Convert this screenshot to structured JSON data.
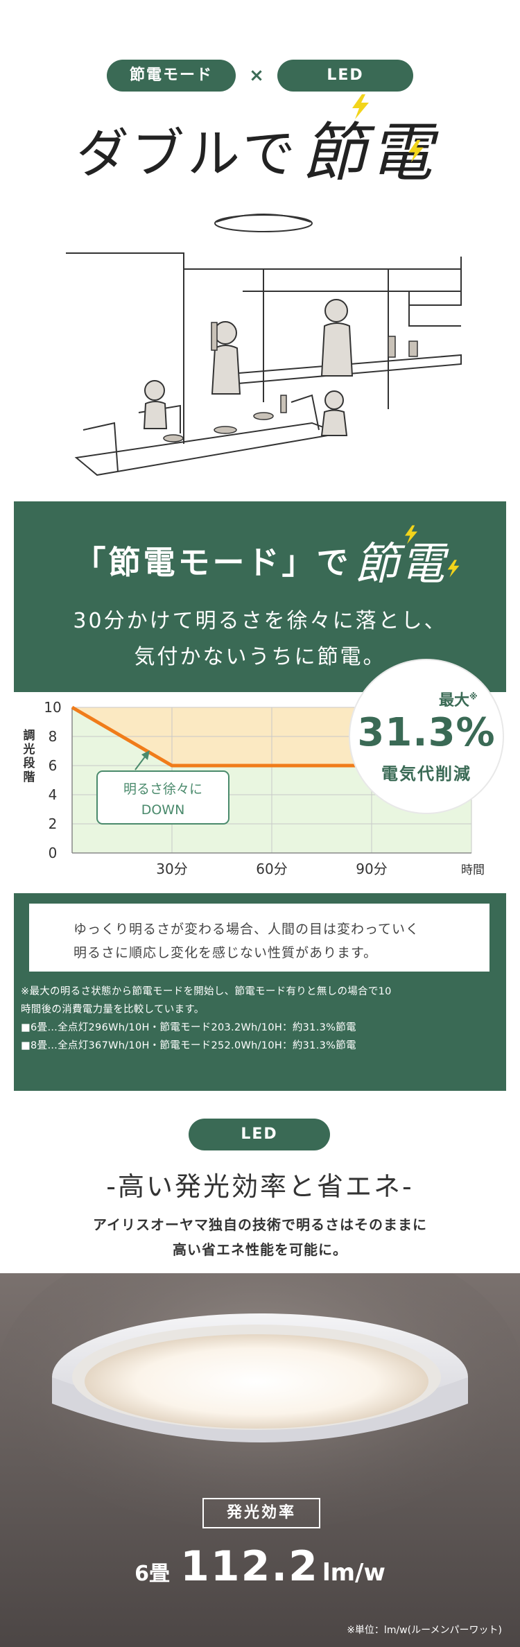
{
  "header": {
    "badge_left": "節電モード",
    "cross": "×",
    "badge_right": "LED",
    "headline_main": "ダブルで",
    "headline_accent": "節電"
  },
  "mode_section": {
    "title_main": "「節電モード」で",
    "title_accent": "節電",
    "subtitle_line1": "30分かけて明るさを徐々に落とし、",
    "subtitle_line2": "気付かないうちに節電。",
    "callout": {
      "prefix": "最大",
      "mark": "※",
      "value": "31.3%",
      "caption": "電気代削減"
    },
    "chart_note_line1": "明るさ徐々に",
    "chart_note_line2": "DOWN",
    "info_line1": "ゆっくり明るさが変わる場合、人間の目は変わっていく",
    "info_line2": "明るさに順応し変化を感じない性質があります。",
    "footnote_1": "※最大の明るさ状態から節電モードを開始し、節電モード有りと無しの場合で10",
    "footnote_2": "時間後の消費電力量を比較しています。",
    "footnote_3": "■6畳…全点灯296Wh/10H・節電モード203.2Wh/10H：約31.3%節電",
    "footnote_4": "■8畳…全点灯367Wh/10H・節電モード252.0Wh/10H：約31.3%節電"
  },
  "chart_data": {
    "type": "line",
    "ylabel": "調光段階",
    "xlabel": "時間",
    "ylim": [
      0,
      10
    ],
    "yticks": [
      "0",
      "2",
      "4",
      "6",
      "8",
      "10"
    ],
    "xticks": [
      "30分",
      "60分",
      "90分"
    ],
    "x": [
      0,
      30,
      120
    ],
    "series": [
      {
        "values": [
          10,
          6,
          6
        ],
        "color": "#f07c1a"
      }
    ],
    "regions": {
      "saved_color": "#fbe9c2",
      "used_color": "#e9f6e0"
    },
    "grid": true
  },
  "led_section": {
    "badge": "LED",
    "title": "-高い発光効率と省エネ-",
    "desc_line1": "アイリスオーヤマ独自の技術で明るさはそのままに",
    "desc_line2": "高い省エネ性能を可能に。",
    "efficiency_label": "発光効率",
    "room": "6畳",
    "value": "112.2",
    "unit": "lm/w",
    "footnote": "※単位：lm/w(ルーメンパーワット)"
  },
  "colors": {
    "brand_green": "#3a6a55",
    "orange": "#f07c1a",
    "bolt_yellow": "#f2d41b"
  }
}
